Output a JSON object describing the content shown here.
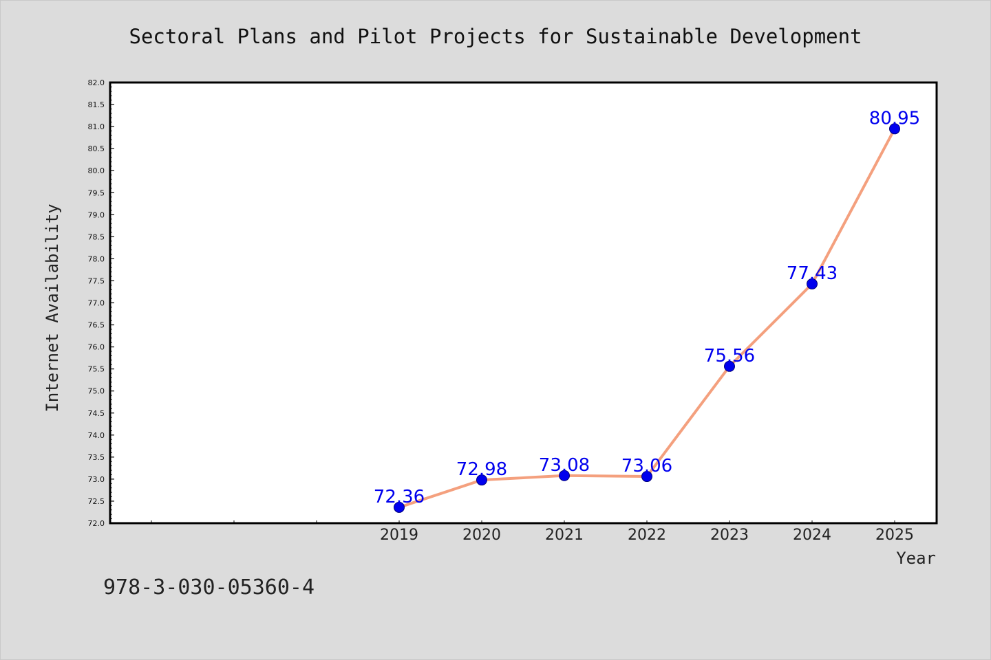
{
  "chart_data": {
    "type": "line",
    "title": "Sectoral Plans and Pilot Projects for Sustainable Development",
    "xlabel": "Year",
    "ylabel": "Internet Availability",
    "x": [
      "2019",
      "2020",
      "2021",
      "2022",
      "2023",
      "2024",
      "2025"
    ],
    "series": [
      {
        "values": [
          72.36,
          72.98,
          73.08,
          73.06,
          75.56,
          77.43,
          80.95
        ]
      }
    ],
    "data_labels": [
      "72.36",
      "72.98",
      "73.08",
      "73.06",
      "75.56",
      "77.43",
      "80.95"
    ],
    "ylim": [
      72.0,
      82.0
    ],
    "y_ticks": [
      "72.0",
      "72.5",
      "73.0",
      "73.5",
      "74.0",
      "74.5",
      "75.0",
      "75.5",
      "76.0",
      "76.5",
      "77.0",
      "77.5",
      "78.0",
      "78.5",
      "79.0",
      "79.5",
      "80.0",
      "80.5",
      "81.0",
      "81.5",
      "82.0"
    ],
    "grid": false,
    "line_color": "#f4a07e",
    "marker_color": "#0000ee",
    "label_color": "#0000ee"
  },
  "footer": {
    "isbn": "978-3-030-05360-4"
  }
}
